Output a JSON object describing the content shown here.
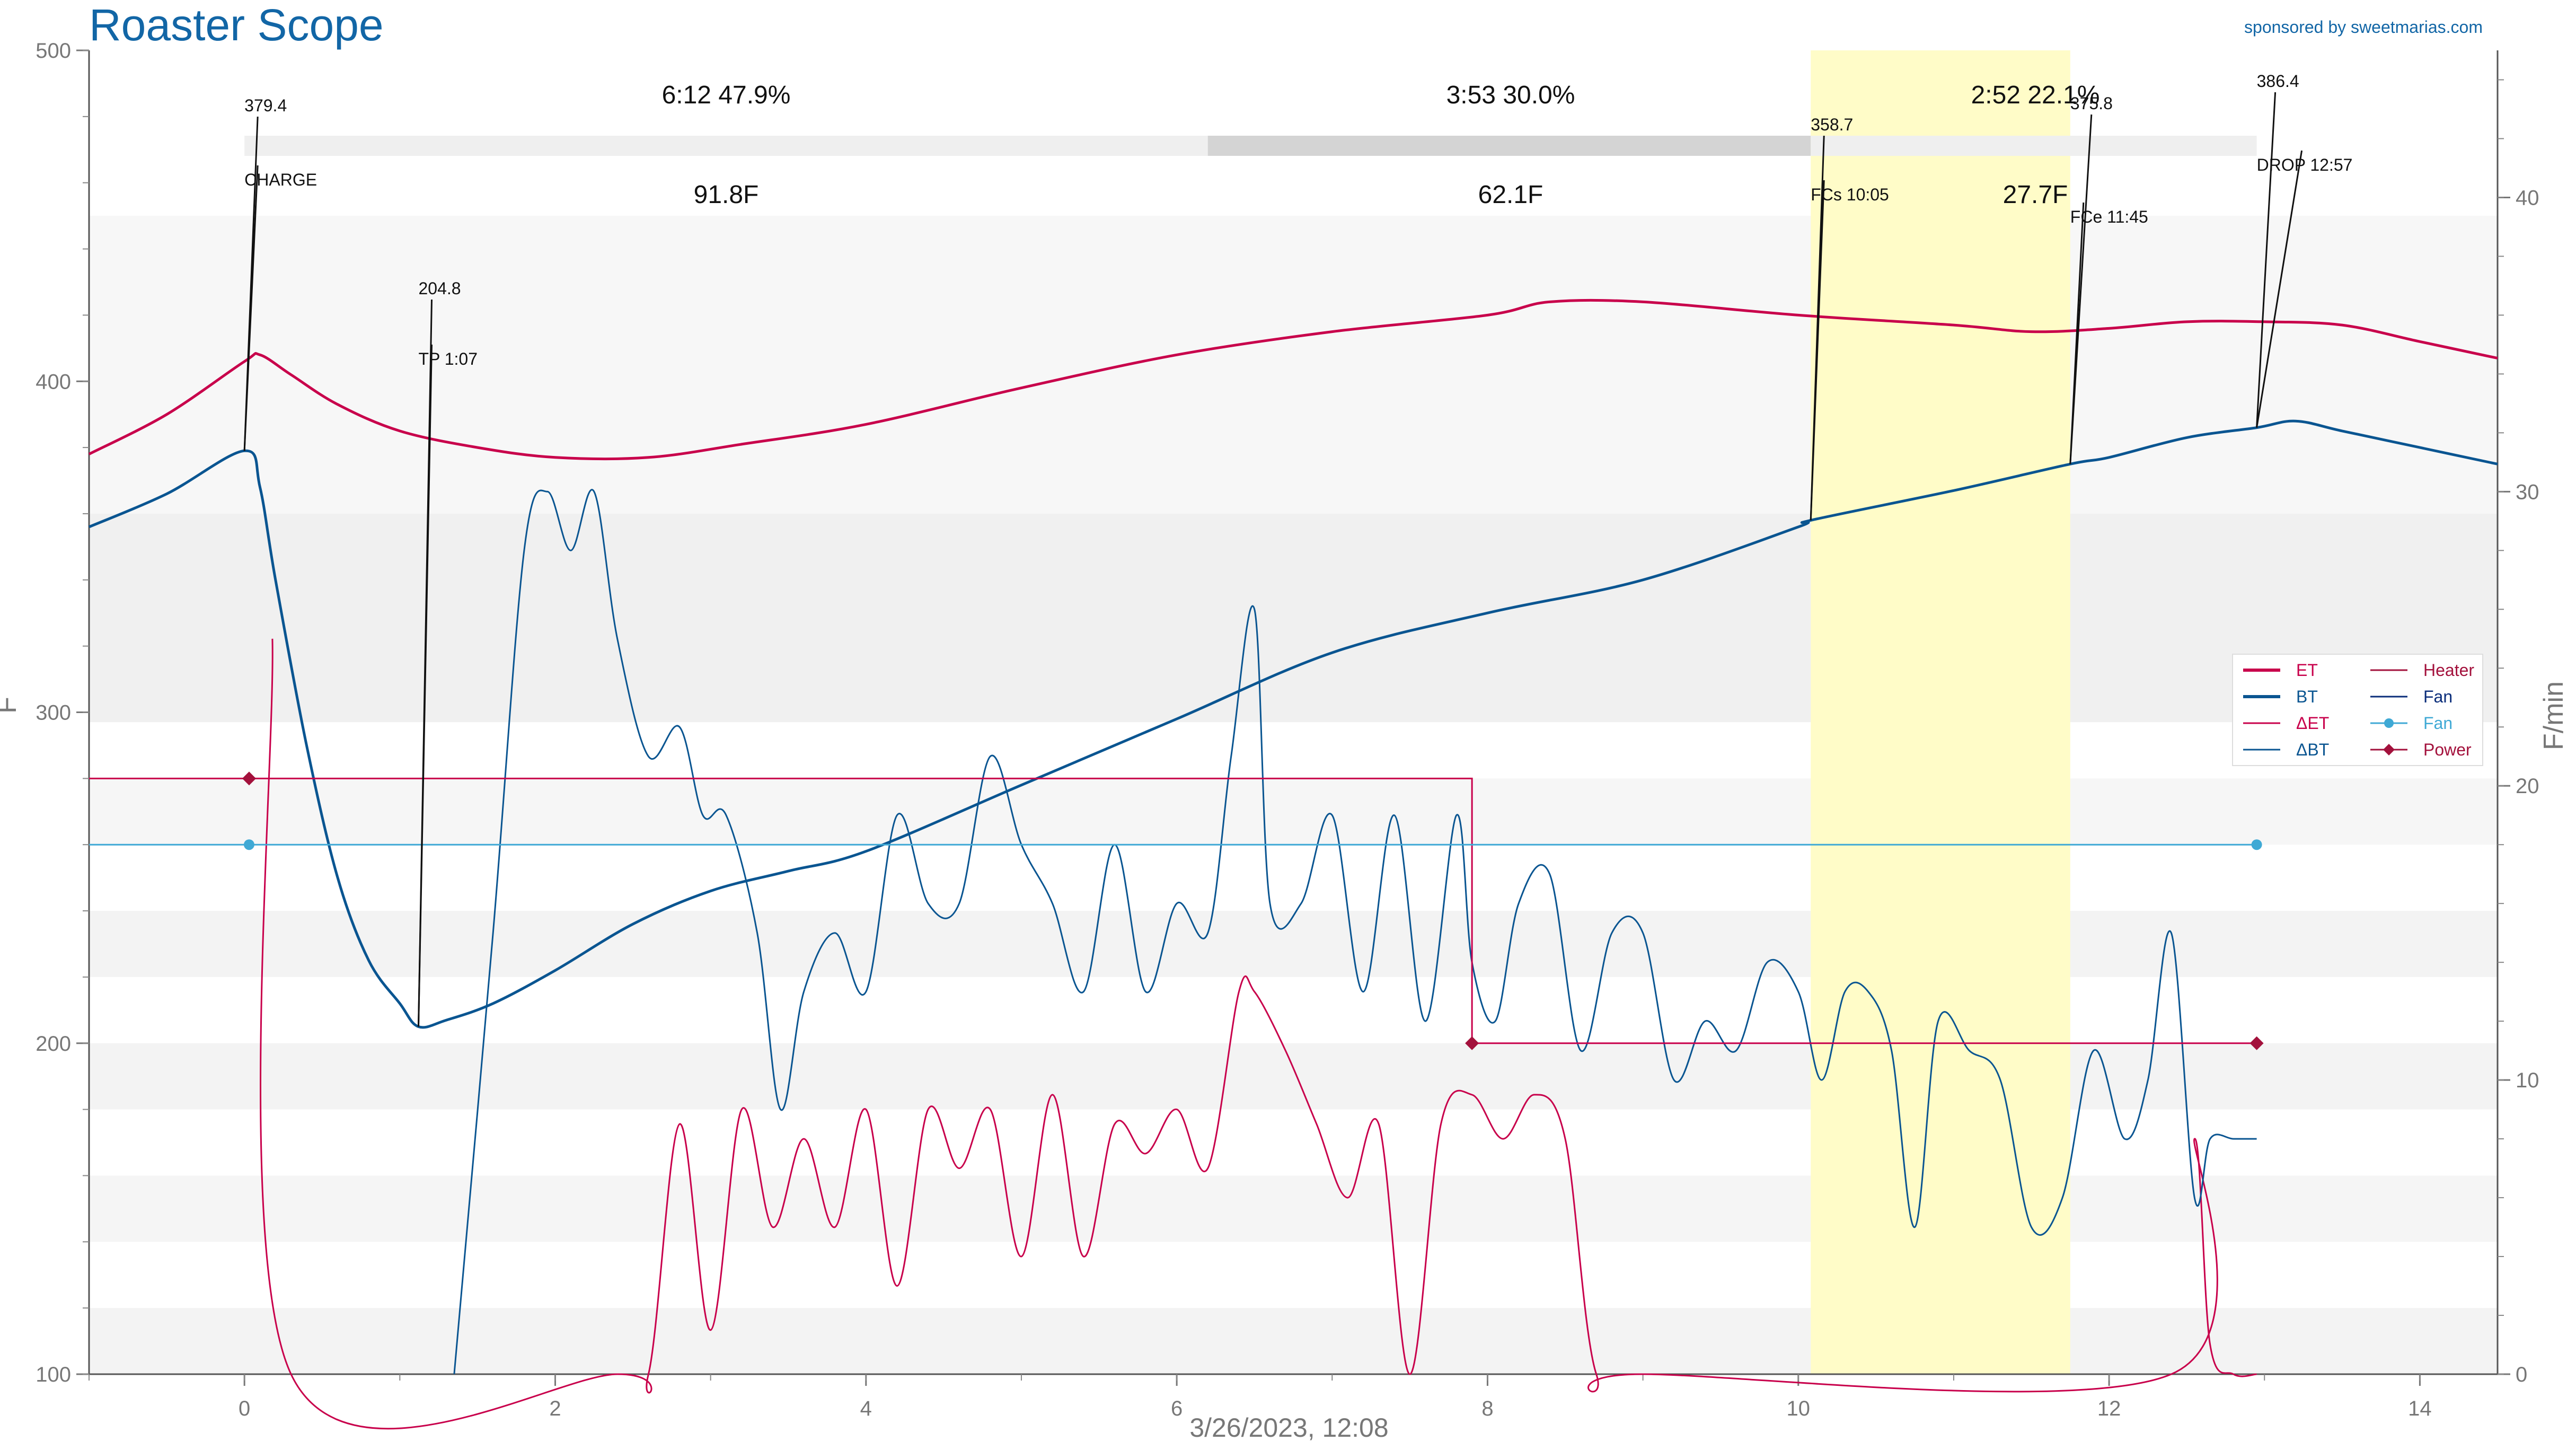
{
  "chart_data": {
    "type": "line",
    "title": "Roaster Scope",
    "sponsor": "sponsored by sweetmarias.com",
    "xlabel": "3/26/2023, 12:08",
    "ylabel_left": "F",
    "ylabel_right": "F/min",
    "xlim": [
      -1,
      14.5
    ],
    "ylim_left": [
      100,
      500
    ],
    "ylim_right": [
      0,
      45
    ],
    "x_ticks": [
      0,
      2,
      4,
      6,
      8,
      10,
      12,
      14
    ],
    "x_tick_labels": [
      "0",
      "2",
      "4",
      "6",
      "8",
      "10",
      "12",
      "14"
    ],
    "y_left_ticks": [
      100,
      200,
      300,
      400,
      500
    ],
    "y_left_tick_labels": [
      "100",
      "200",
      "300",
      "400",
      "500"
    ],
    "y_right_ticks": [
      0,
      10,
      20,
      30,
      40
    ],
    "y_right_tick_labels": [
      "0",
      "10",
      "20",
      "30",
      "40"
    ],
    "phases": [
      {
        "time_pct": "6:12  47.9%",
        "delta": "91.8F",
        "x_start": 0,
        "x_end": 6.2,
        "color": "#efefef"
      },
      {
        "time_pct": "3:53  30.0%",
        "delta": "62.1F",
        "x_start": 6.2,
        "x_end": 10.08,
        "color": "#d4d4d4"
      },
      {
        "time_pct": "2:52  22.1%",
        "delta": "27.7F",
        "x_start": 10.08,
        "x_end": 12.95,
        "color": "#efefef"
      }
    ],
    "highlight_region": {
      "x_start": 10.08,
      "x_end": 11.75,
      "color": "#fffcc8"
    },
    "series": [
      {
        "name": "ET",
        "axis": "left",
        "color": "#c8004b",
        "width": 5,
        "x": [
          -1,
          -0.5,
          0,
          0.1,
          0.3,
          0.6,
          1.0,
          1.5,
          2.0,
          2.6,
          3.2,
          4.0,
          5.0,
          6.0,
          7.0,
          8.0,
          8.4,
          9.0,
          10.0,
          11.0,
          11.5,
          12.0,
          12.5,
          13.0,
          13.5,
          14.0,
          14.5
        ],
        "y": [
          378,
          390,
          406,
          408,
          402,
          393,
          385,
          380,
          377,
          377,
          381,
          387,
          398,
          408,
          415,
          420,
          424,
          424,
          420,
          417,
          415,
          416,
          418,
          418,
          417,
          412,
          407
        ]
      },
      {
        "name": "BT",
        "axis": "left",
        "color": "#0a5591",
        "width": 5,
        "x": [
          -1,
          -0.5,
          0,
          0.1,
          0.2,
          0.4,
          0.6,
          0.8,
          1.0,
          1.12,
          1.3,
          1.6,
          2.0,
          2.5,
          3.0,
          3.5,
          4.0,
          5.0,
          6.0,
          7.0,
          8.0,
          9.0,
          10.0,
          10.08,
          11.0,
          11.75,
          12.0,
          12.5,
          12.95,
          13.2,
          13.5,
          14.0,
          14.5
        ],
        "y": [
          356,
          366,
          379,
          368,
          340,
          290,
          250,
          225,
          212,
          205,
          207,
          212,
          222,
          236,
          246,
          252,
          258,
          278,
          298,
          318,
          330,
          340,
          356,
          358,
          367,
          375,
          377,
          383,
          386,
          388,
          385,
          380,
          375
        ]
      },
      {
        "name": "ΔET",
        "axis": "right",
        "color": "#c8004b",
        "width": 3,
        "x": [
          0.18,
          0.3,
          2.4,
          2.6,
          2.8,
          3.0,
          3.2,
          3.4,
          3.6,
          3.8,
          4.0,
          4.2,
          4.4,
          4.6,
          4.8,
          5.0,
          5.2,
          5.4,
          5.6,
          5.8,
          6.0,
          6.2,
          6.4,
          6.5,
          6.7,
          6.9,
          7.1,
          7.3,
          7.5,
          7.7,
          7.9,
          8.1,
          8.3,
          8.5,
          8.7,
          9.0,
          12.4,
          12.55,
          12.65,
          12.8,
          12.95
        ],
        "y": [
          25,
          0,
          0,
          0,
          8.5,
          1.5,
          9,
          5,
          8,
          5,
          9,
          3,
          9,
          7,
          9,
          4,
          9.5,
          4,
          8.5,
          7.5,
          9,
          7,
          13,
          13,
          11,
          8.5,
          6,
          8.5,
          0,
          8.5,
          9.5,
          8,
          9.5,
          8,
          0,
          0,
          0,
          8,
          1,
          0,
          0
        ]
      },
      {
        "name": "ΔBT",
        "axis": "right",
        "color": "#0a5591",
        "width": 3,
        "x": [
          1.35,
          1.6,
          1.8,
          1.95,
          2.1,
          2.25,
          2.4,
          2.6,
          2.8,
          2.95,
          3.1,
          3.3,
          3.45,
          3.6,
          3.8,
          4.0,
          4.2,
          4.4,
          4.6,
          4.8,
          5.0,
          5.2,
          5.4,
          5.6,
          5.8,
          6.0,
          6.2,
          6.35,
          6.5,
          6.6,
          6.8,
          7.0,
          7.2,
          7.4,
          7.6,
          7.8,
          7.9,
          8.05,
          8.2,
          8.4,
          8.6,
          8.8,
          9.0,
          9.2,
          9.4,
          9.6,
          9.8,
          10.0,
          10.15,
          10.3,
          10.45,
          10.6,
          10.75,
          10.9,
          11.1,
          11.3,
          11.5,
          11.7,
          11.9,
          12.1,
          12.25,
          12.4,
          12.55,
          12.65,
          12.8,
          12.95
        ],
        "y": [
          0,
          15,
          28,
          30,
          28,
          30,
          25,
          21,
          22,
          19,
          19,
          15,
          9,
          13,
          15,
          13,
          19,
          16,
          16,
          21,
          18,
          16,
          13,
          18,
          13,
          16,
          15,
          21,
          26,
          16,
          16,
          19,
          13,
          19,
          12,
          19,
          14,
          12,
          16,
          17,
          11,
          15,
          15,
          10,
          12,
          11,
          14,
          13,
          10,
          13,
          13,
          11,
          5,
          12,
          11,
          10,
          5,
          6,
          11,
          8,
          10,
          15,
          6,
          8,
          8,
          8
        ]
      }
    ],
    "control_series": [
      {
        "name": "Heater",
        "color": "#c8004b",
        "x": [
          -1,
          7.9,
          7.9,
          12.95
        ],
        "y": [
          280,
          280,
          200,
          200
        ]
      },
      {
        "name": "Fan",
        "color": "#3fa9d5",
        "x": [
          -1,
          12.95
        ],
        "y": [
          260,
          260
        ]
      },
      {
        "name": "Power",
        "color": "#a3113c",
        "x": [
          0.03,
          7.9,
          12.95
        ],
        "y": [
          280,
          200,
          200
        ]
      },
      {
        "name": "Fan",
        "color": "#3fa9d5",
        "x": [
          0.03,
          12.95
        ],
        "y": [
          260,
          260
        ]
      }
    ],
    "annotations": [
      {
        "value": "379.4",
        "label": "CHARGE",
        "x": 0,
        "y": 379
      },
      {
        "value": "204.8",
        "label": "TP 1:07",
        "x": 1.12,
        "y": 205
      },
      {
        "value": "358.7",
        "label": "FCs 10:05",
        "x": 10.08,
        "y": 358
      },
      {
        "value": "375.8",
        "label": "FCe 11:45",
        "x": 11.75,
        "y": 375
      },
      {
        "value": "386.4",
        "label": "DROP 12:57",
        "x": 12.95,
        "y": 386
      }
    ],
    "legend": {
      "placement": "right",
      "entries": [
        {
          "name": "ET",
          "color": "#c8004b",
          "style": "thick"
        },
        {
          "name": "BT",
          "color": "#0a5591",
          "style": "thick"
        },
        {
          "name": "ΔET",
          "color": "#c8004b",
          "style": "thin"
        },
        {
          "name": "ΔBT",
          "color": "#0a5591",
          "style": "thin"
        },
        {
          "name": "Heater",
          "color": "#a3113c",
          "text_color": "#a3113c",
          "style": "thin"
        },
        {
          "name": "Fan",
          "color": "#0a2d7a",
          "text_color": "#0a2d7a",
          "style": "thin"
        },
        {
          "name": "Fan",
          "color": "#3fa9d5",
          "text_color": "#3fa9d5",
          "style": "marker-dot"
        },
        {
          "name": "Power",
          "color": "#a3113c",
          "text_color": "#a3113c",
          "style": "marker-diamond"
        }
      ]
    },
    "grid": false,
    "background_bands": true
  }
}
